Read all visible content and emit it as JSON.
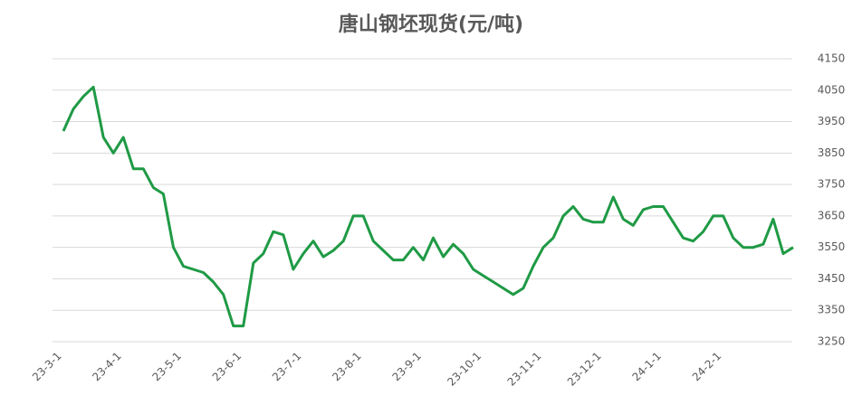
{
  "chart_data": {
    "type": "line",
    "title": "唐山钢坯现货(元/吨)",
    "categories": [
      "23-3-1",
      null,
      null,
      null,
      null,
      null,
      "23-4-1",
      null,
      null,
      null,
      null,
      null,
      "23-5-1",
      null,
      null,
      null,
      null,
      null,
      "23-6-1",
      null,
      null,
      null,
      null,
      null,
      "23-7-1",
      null,
      null,
      null,
      null,
      null,
      "23-8-1",
      null,
      null,
      null,
      null,
      null,
      "23-9-1",
      null,
      null,
      null,
      null,
      null,
      "23-10-1",
      null,
      null,
      null,
      null,
      null,
      "23-11-1",
      null,
      null,
      null,
      null,
      null,
      "23-12-1",
      null,
      null,
      null,
      null,
      null,
      "24-1-1",
      null,
      null,
      null,
      null,
      null,
      "24-2-1",
      null,
      null,
      null,
      null,
      null,
      null,
      null
    ],
    "values": [
      3920,
      3990,
      4030,
      4060,
      3900,
      3850,
      3900,
      3800,
      3800,
      3740,
      3720,
      3550,
      3490,
      3480,
      3470,
      3440,
      3400,
      3300,
      3300,
      3500,
      3530,
      3600,
      3590,
      3480,
      3530,
      3570,
      3520,
      3540,
      3570,
      3650,
      3650,
      3570,
      3540,
      3510,
      3510,
      3550,
      3510,
      3580,
      3520,
      3560,
      3530,
      3480,
      3460,
      3440,
      3420,
      3400,
      3420,
      3490,
      3550,
      3580,
      3650,
      3680,
      3640,
      3630,
      3630,
      3710,
      3640,
      3620,
      3670,
      3680,
      3680,
      3630,
      3580,
      3570,
      3600,
      3650,
      3650,
      3580,
      3550,
      3550,
      3560,
      3640,
      3530,
      3550
    ],
    "color": "#1f9a45",
    "ylim": [
      3250,
      4150
    ],
    "yticks": [
      3250,
      3350,
      3450,
      3550,
      3650,
      3750,
      3850,
      3950,
      4050,
      4150
    ],
    "grid": true
  }
}
